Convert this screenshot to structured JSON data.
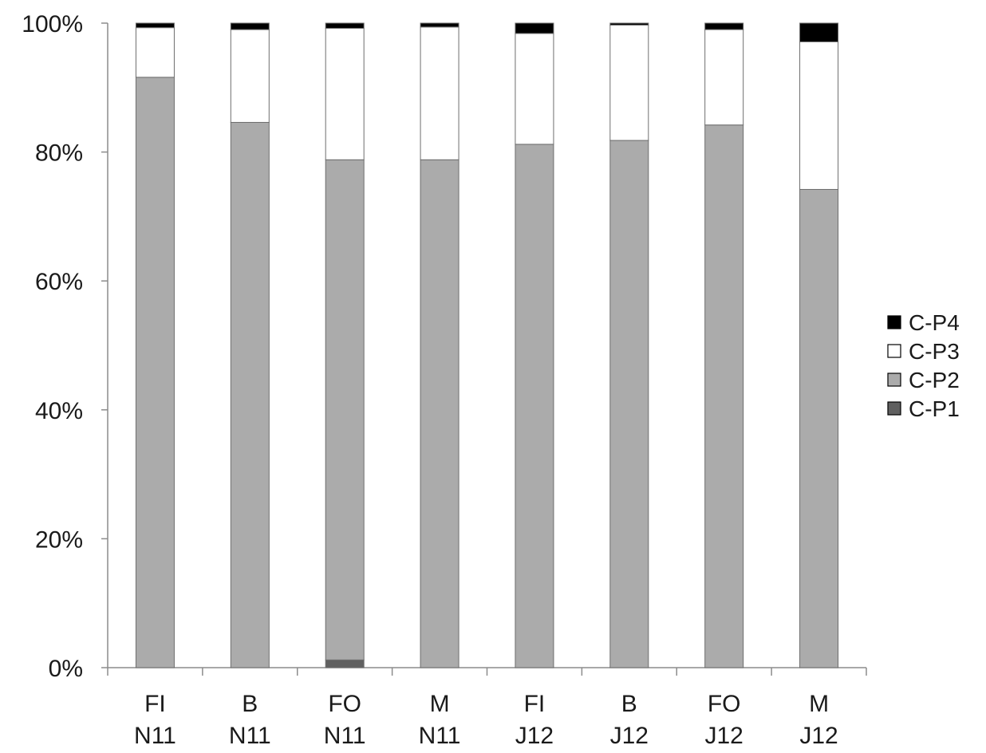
{
  "chart_data": {
    "type": "bar",
    "stacked": "percent",
    "categories": [
      [
        "FI",
        "N11"
      ],
      [
        "B",
        "N11"
      ],
      [
        "FO",
        "N11"
      ],
      [
        "M",
        "N11"
      ],
      [
        "FI",
        "J12"
      ],
      [
        "B",
        "J12"
      ],
      [
        "FO",
        "J12"
      ],
      [
        "M",
        "J12"
      ]
    ],
    "series": [
      {
        "name": "C-P1",
        "color": "#606060",
        "values": [
          0,
          0,
          1.2,
          0,
          0,
          0,
          0,
          0
        ]
      },
      {
        "name": "C-P2",
        "color": "#ababab",
        "values": [
          91.6,
          84.6,
          77.6,
          78.8,
          81.2,
          81.8,
          84.2,
          74.2
        ]
      },
      {
        "name": "C-P3",
        "color": "#ffffff",
        "values": [
          7.7,
          14.4,
          20.4,
          20.6,
          17.2,
          17.9,
          14.8,
          22.9
        ]
      },
      {
        "name": "C-P4",
        "color": "#000000",
        "values": [
          0.7,
          1.0,
          0.8,
          0.6,
          1.6,
          0.3,
          1.0,
          2.9
        ]
      }
    ],
    "ylim": [
      0,
      100
    ],
    "yticks": [
      "0%",
      "20%",
      "40%",
      "60%",
      "80%",
      "100%"
    ],
    "legend": {
      "position": "right",
      "order": [
        "C-P4",
        "C-P3",
        "C-P2",
        "C-P1"
      ]
    },
    "grid": false
  }
}
